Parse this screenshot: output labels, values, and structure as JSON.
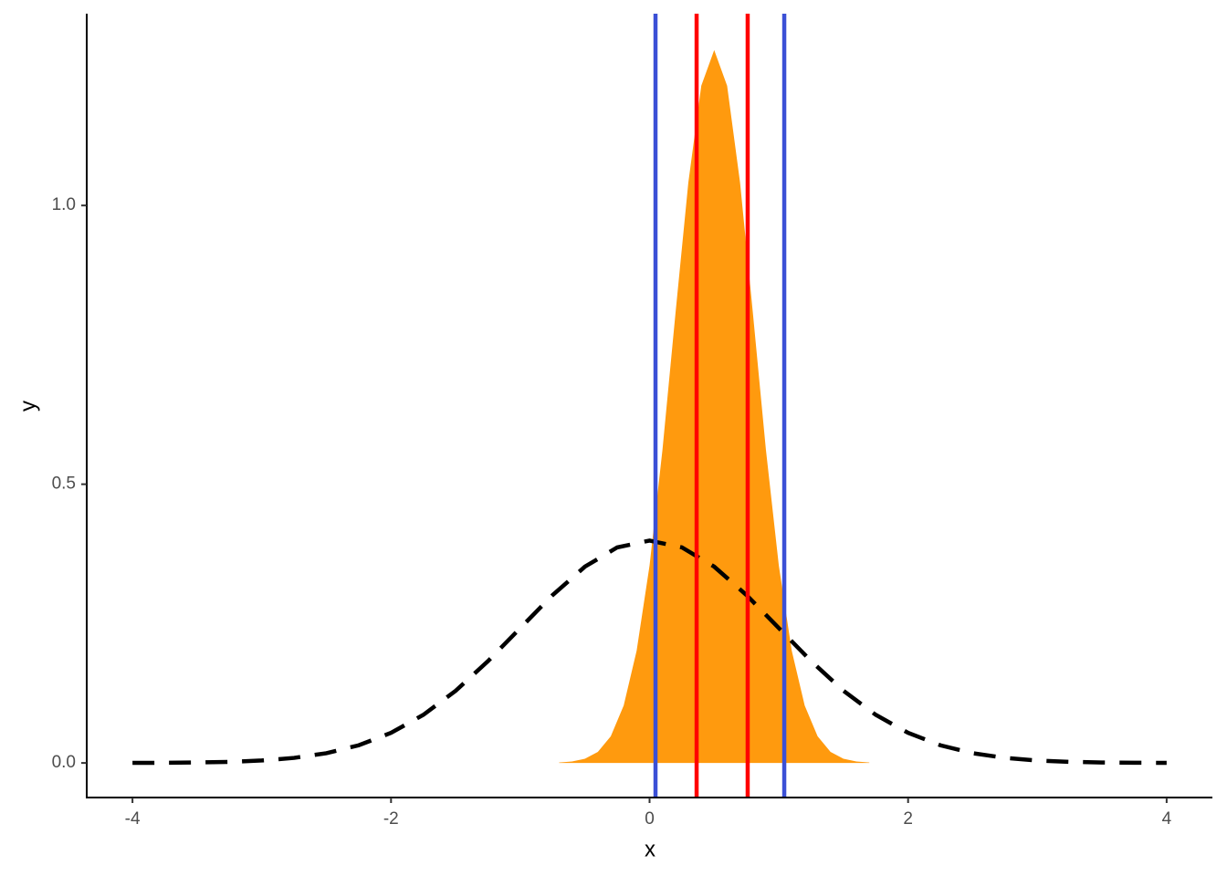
{
  "chart_data": {
    "type": "density",
    "x_label": "x",
    "y_label": "y",
    "xlim": [
      -4.354,
      4.354
    ],
    "ylim": [
      -0.062,
      1.344
    ],
    "xticks": [
      -4,
      -2,
      0,
      2,
      4
    ],
    "yticks": [
      {
        "value": 0,
        "label": "0.0"
      },
      {
        "value": 0.5,
        "label": "0.5"
      },
      {
        "value": 1,
        "label": "1.0"
      }
    ],
    "series": [
      {
        "color": "#ff9a0e",
        "fill": true,
        "x": [
          -0.7,
          -0.6,
          -0.5,
          -0.4,
          -0.3,
          -0.2,
          -0.1,
          0,
          0.1,
          0.2,
          0.3,
          0.4,
          0.5,
          0.6,
          0.7,
          0.8,
          0.9,
          1.0,
          1.1,
          1.2,
          1.3,
          1.4,
          1.5,
          1.6,
          1.7
        ],
        "values": [
          0.0008,
          0.0026,
          0.0075,
          0.0199,
          0.0478,
          0.1032,
          0.2013,
          0.3542,
          0.5621,
          0.8052,
          1.0411,
          1.2147,
          1.2787,
          1.2147,
          1.0411,
          0.8052,
          0.5621,
          0.3542,
          0.2013,
          0.1032,
          0.0478,
          0.0199,
          0.0075,
          0.0026,
          0.0008
        ]
      },
      {
        "color": "#000000",
        "dashed": true,
        "x": [
          -4,
          -3.75,
          -3.5,
          -3.25,
          -3,
          -2.75,
          -2.5,
          -2.25,
          -2,
          -1.75,
          -1.5,
          -1.25,
          -1,
          -0.75,
          -0.5,
          -0.25,
          0,
          0.25,
          0.5,
          0.75,
          1,
          1.25,
          1.5,
          1.75,
          2,
          2.25,
          2.5,
          2.75,
          3,
          3.25,
          3.5,
          3.75,
          4
        ],
        "values": [
          0.0001,
          0.0004,
          0.0009,
          0.002,
          0.0044,
          0.0091,
          0.0175,
          0.0317,
          0.054,
          0.0863,
          0.1295,
          0.1826,
          0.242,
          0.3011,
          0.3521,
          0.3867,
          0.3989,
          0.3867,
          0.3521,
          0.3011,
          0.242,
          0.1826,
          0.1295,
          0.0863,
          0.054,
          0.0317,
          0.0175,
          0.0091,
          0.0044,
          0.002,
          0.0009,
          0.0004,
          0.0001
        ]
      }
    ],
    "vlines": [
      {
        "value": 0.046,
        "color": "#3b50d6"
      },
      {
        "value": 0.364,
        "color": "#ff0000"
      },
      {
        "value": 0.759,
        "color": "#ff0000"
      },
      {
        "value": 1.042,
        "color": "#3b50d6"
      }
    ]
  }
}
